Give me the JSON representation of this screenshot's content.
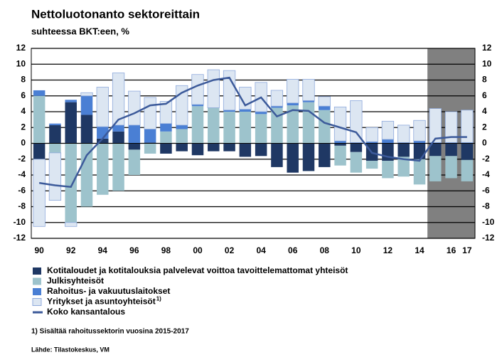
{
  "chart_data": {
    "type": "stacked_bar_line",
    "title": "Nettoluotonanto sektoreittain",
    "subtitle": "suhteessa BKT:een, %",
    "categories": [
      "90",
      null,
      "92",
      null,
      "94",
      null,
      "96",
      null,
      "98",
      null,
      "00",
      null,
      "02",
      null,
      "04",
      null,
      "06",
      null,
      "08",
      null,
      "10",
      null,
      "12",
      null,
      "14",
      null,
      "16",
      "17"
    ],
    "series": [
      {
        "name": "Kotitaloudet ja kotitalouksia palvelevat voittoa tavoittelemattomat yhteisöt",
        "color": "#1f3864",
        "values": [
          -2,
          2.3,
          5.2,
          3.6,
          0.6,
          1.5,
          -0.8,
          0.1,
          -1.3,
          -1,
          -1.5,
          -1,
          -1,
          -1.7,
          -1.6,
          -3,
          -3.7,
          -3.5,
          -3,
          -0.3,
          -1.1,
          -2.2,
          -2.2,
          -1.7,
          -2,
          -1.6,
          -1.6,
          -2.1
        ]
      },
      {
        "name": "Julkisyhteisöt",
        "color": "#9dc3cc",
        "values": [
          6,
          -1.2,
          -10,
          -8,
          -6.5,
          -6,
          -3.2,
          -1.3,
          1.5,
          1.8,
          4.7,
          4.5,
          4,
          4,
          3.7,
          4.5,
          4.8,
          5.2,
          4.2,
          -2.5,
          -2.6,
          -1,
          -2.2,
          -2.5,
          -3.2,
          -3.2,
          -2.8,
          -2.7
        ]
      },
      {
        "name": "Rahoitus- ja vakuutuslaitokset",
        "color": "#4a7fd4",
        "values": [
          0.7,
          0.2,
          0.3,
          2.4,
          1.5,
          0.8,
          2.3,
          1.7,
          1,
          0.5,
          0.2,
          0,
          0.2,
          0.3,
          0.3,
          0.2,
          0.3,
          0.2,
          0.5,
          0.3,
          0.1,
          0.2,
          0.5,
          0.1,
          0.3,
          0.1,
          0.1,
          0.1
        ]
      },
      {
        "name": "Yritykset ja asuntoyhteisöt",
        "name_note": "1)",
        "color": "#dce6f2",
        "values": [
          -8.5,
          -6,
          -0.5,
          0.4,
          5,
          6.6,
          4.3,
          4,
          2.8,
          5,
          3.8,
          4.8,
          5,
          2.8,
          3.7,
          2,
          3,
          2.7,
          1.2,
          4.3,
          5.3,
          1.8,
          2.3,
          2.2,
          2.6,
          4.3,
          3.9,
          4.1
        ]
      },
      {
        "name": "Koko kansantalous",
        "color": "#3c5a9a",
        "kind": "line",
        "values": [
          -5,
          -5.3,
          -5.5,
          -1.5,
          0.6,
          3,
          3.8,
          4.8,
          5,
          6.4,
          7.3,
          8,
          8.3,
          4.8,
          5.8,
          3.4,
          4.2,
          4.1,
          2.6,
          2,
          1.4,
          -1.2,
          -1.7,
          -2,
          -2.2,
          0.6,
          0.8,
          0.8
        ]
      }
    ],
    "ylim": [
      -12,
      12
    ],
    "yticks": [
      -12,
      -10,
      -8,
      -6,
      -4,
      -2,
      0,
      2,
      4,
      6,
      8,
      10,
      12
    ],
    "mirror_y_axis": true,
    "grid": true,
    "shaded_from_index": 25,
    "shade_color": "#808080",
    "footnote": "1) Sisältää rahoitussektorin vuosina 2015-2017",
    "source": "Lähde: Tilastokeskus, VM"
  }
}
